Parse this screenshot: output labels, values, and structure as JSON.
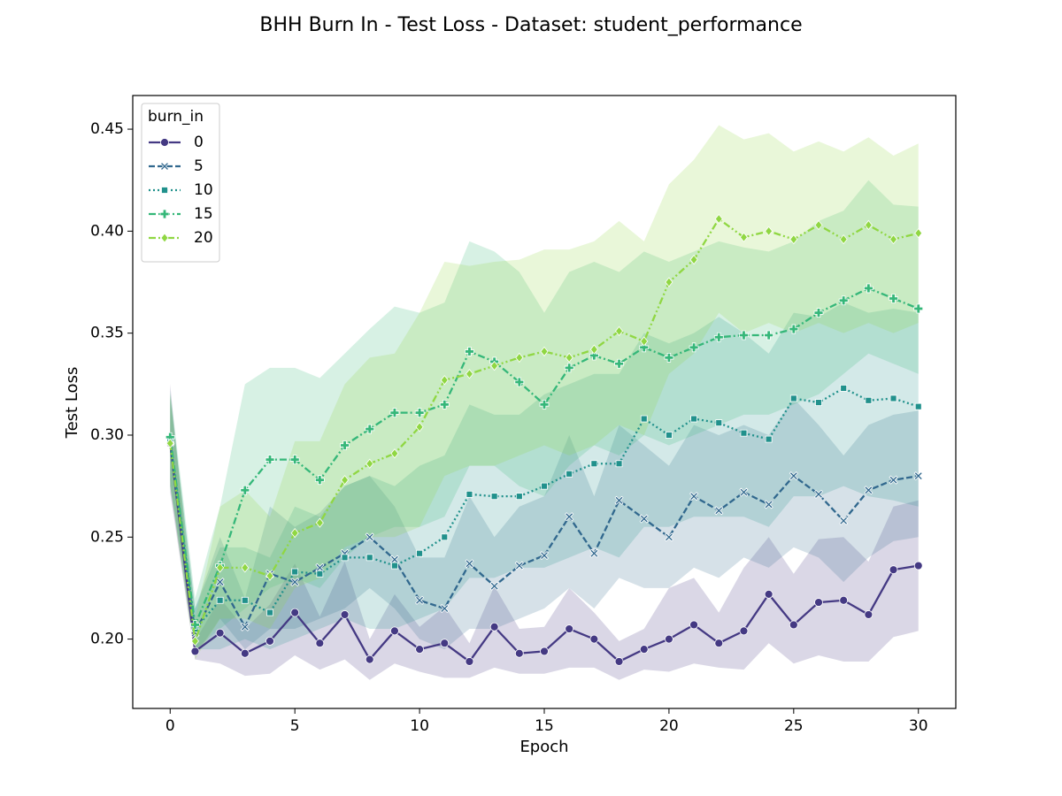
{
  "chart_data": {
    "type": "line",
    "title": "BHH Burn In - Test Loss - Dataset: student_performance",
    "xlabel": "Epoch",
    "ylabel": "Test Loss",
    "x": [
      0,
      1,
      2,
      3,
      4,
      5,
      6,
      7,
      8,
      9,
      10,
      11,
      12,
      13,
      14,
      15,
      16,
      17,
      18,
      19,
      20,
      21,
      22,
      23,
      24,
      25,
      26,
      27,
      28,
      29,
      30
    ],
    "xlim": [
      -1.5,
      31.5
    ],
    "xticks": [
      0,
      5,
      10,
      15,
      20,
      25,
      30
    ],
    "ylim": [
      0.166,
      0.4665
    ],
    "yticks": [
      {
        "value": 0.2,
        "label": "0.20"
      },
      0.25,
      {
        "value": 0.3,
        "label": "0.30"
      },
      0.35,
      {
        "value": 0.4,
        "label": "0.40"
      },
      0.45
    ],
    "legend_title": "burn_in",
    "legend_loc": "upper left",
    "series": [
      {
        "name": "0",
        "color": "#443983",
        "marker": "circle",
        "linestyle": "solid",
        "values": [
          0.296,
          0.194,
          0.203,
          0.193,
          0.199,
          0.213,
          0.198,
          0.212,
          0.19,
          0.204,
          0.195,
          0.198,
          0.189,
          0.206,
          0.193,
          0.194,
          0.205,
          0.2,
          0.189,
          0.195,
          0.2,
          0.207,
          0.198,
          0.204,
          0.222,
          0.207,
          0.218,
          0.219,
          0.212,
          0.234,
          0.236
        ],
        "lower": [
          0.272,
          0.19,
          0.188,
          0.182,
          0.183,
          0.192,
          0.185,
          0.19,
          0.18,
          0.188,
          0.184,
          0.181,
          0.181,
          0.186,
          0.183,
          0.183,
          0.186,
          0.186,
          0.18,
          0.185,
          0.184,
          0.188,
          0.186,
          0.185,
          0.198,
          0.188,
          0.192,
          0.189,
          0.189,
          0.201,
          0.204
        ],
        "upper": [
          0.325,
          0.199,
          0.22,
          0.205,
          0.217,
          0.237,
          0.211,
          0.238,
          0.2,
          0.222,
          0.206,
          0.216,
          0.198,
          0.226,
          0.205,
          0.206,
          0.225,
          0.213,
          0.199,
          0.205,
          0.225,
          0.23,
          0.213,
          0.235,
          0.25,
          0.232,
          0.249,
          0.25,
          0.238,
          0.265,
          0.268
        ]
      },
      {
        "name": "5",
        "color": "#31688e",
        "marker": "x",
        "linestyle": "dashed",
        "values": [
          0.297,
          0.203,
          0.228,
          0.206,
          0.232,
          0.228,
          0.235,
          0.242,
          0.25,
          0.239,
          0.219,
          0.215,
          0.237,
          0.226,
          0.236,
          0.241,
          0.26,
          0.242,
          0.268,
          0.259,
          0.25,
          0.27,
          0.263,
          0.272,
          0.266,
          0.28,
          0.271,
          0.258,
          0.273,
          0.278,
          0.28
        ],
        "lower": [
          0.275,
          0.192,
          0.21,
          0.195,
          0.205,
          0.205,
          0.21,
          0.215,
          0.225,
          0.215,
          0.2,
          0.195,
          0.205,
          0.205,
          0.21,
          0.215,
          0.225,
          0.215,
          0.23,
          0.225,
          0.225,
          0.235,
          0.23,
          0.24,
          0.235,
          0.245,
          0.24,
          0.228,
          0.24,
          0.248,
          0.25
        ],
        "upper": [
          0.318,
          0.215,
          0.25,
          0.22,
          0.265,
          0.255,
          0.262,
          0.275,
          0.28,
          0.265,
          0.24,
          0.24,
          0.27,
          0.25,
          0.265,
          0.27,
          0.3,
          0.27,
          0.305,
          0.295,
          0.285,
          0.305,
          0.3,
          0.305,
          0.3,
          0.318,
          0.305,
          0.29,
          0.305,
          0.31,
          0.312
        ]
      },
      {
        "name": "10",
        "color": "#21918c",
        "marker": "square",
        "linestyle": "dotted",
        "values": [
          0.298,
          0.205,
          0.219,
          0.219,
          0.213,
          0.233,
          0.232,
          0.24,
          0.24,
          0.236,
          0.242,
          0.25,
          0.271,
          0.27,
          0.27,
          0.275,
          0.281,
          0.286,
          0.286,
          0.308,
          0.3,
          0.308,
          0.306,
          0.301,
          0.298,
          0.318,
          0.316,
          0.323,
          0.317,
          0.318,
          0.314
        ],
        "lower": [
          0.275,
          0.195,
          0.195,
          0.2,
          0.195,
          0.2,
          0.205,
          0.21,
          0.205,
          0.205,
          0.21,
          0.215,
          0.23,
          0.23,
          0.235,
          0.235,
          0.24,
          0.245,
          0.24,
          0.255,
          0.255,
          0.26,
          0.26,
          0.26,
          0.255,
          0.27,
          0.27,
          0.275,
          0.27,
          0.268,
          0.265
        ],
        "upper": [
          0.32,
          0.215,
          0.245,
          0.245,
          0.24,
          0.265,
          0.26,
          0.275,
          0.28,
          0.275,
          0.285,
          0.29,
          0.315,
          0.31,
          0.31,
          0.32,
          0.325,
          0.33,
          0.33,
          0.35,
          0.345,
          0.35,
          0.358,
          0.35,
          0.34,
          0.36,
          0.358,
          0.365,
          0.36,
          0.362,
          0.36
        ]
      },
      {
        "name": "15",
        "color": "#35b779",
        "marker": "plus",
        "linestyle": "dashdot",
        "values": [
          0.299,
          0.207,
          0.236,
          0.273,
          0.288,
          0.288,
          0.278,
          0.295,
          0.303,
          0.311,
          0.311,
          0.315,
          0.341,
          0.336,
          0.326,
          0.315,
          0.333,
          0.339,
          0.335,
          0.343,
          0.338,
          0.343,
          0.348,
          0.349,
          0.349,
          0.352,
          0.36,
          0.366,
          0.372,
          0.367,
          0.362
        ],
        "lower": [
          0.278,
          0.195,
          0.205,
          0.215,
          0.225,
          0.23,
          0.225,
          0.24,
          0.25,
          0.255,
          0.255,
          0.26,
          0.285,
          0.285,
          0.275,
          0.27,
          0.285,
          0.295,
          0.29,
          0.3,
          0.295,
          0.3,
          0.305,
          0.31,
          0.31,
          0.315,
          0.32,
          0.33,
          0.34,
          0.335,
          0.33
        ],
        "upper": [
          0.322,
          0.22,
          0.265,
          0.325,
          0.333,
          0.333,
          0.328,
          0.34,
          0.352,
          0.363,
          0.36,
          0.365,
          0.395,
          0.39,
          0.38,
          0.36,
          0.38,
          0.385,
          0.38,
          0.39,
          0.385,
          0.39,
          0.395,
          0.392,
          0.39,
          0.395,
          0.405,
          0.41,
          0.425,
          0.413,
          0.412
        ]
      },
      {
        "name": "20",
        "color": "#90d743",
        "marker": "diamond",
        "linestyle": "dashdotdot",
        "values": [
          0.296,
          0.199,
          0.235,
          0.235,
          0.231,
          0.252,
          0.257,
          0.278,
          0.286,
          0.291,
          0.304,
          0.327,
          0.33,
          0.334,
          0.338,
          0.341,
          0.338,
          0.342,
          0.351,
          0.346,
          0.375,
          0.386,
          0.406,
          0.397,
          0.4,
          0.396,
          0.403,
          0.396,
          0.403,
          0.396,
          0.399
        ],
        "lower": [
          0.275,
          0.19,
          0.21,
          0.21,
          0.205,
          0.225,
          0.23,
          0.245,
          0.25,
          0.25,
          0.255,
          0.28,
          0.285,
          0.285,
          0.29,
          0.295,
          0.29,
          0.295,
          0.305,
          0.3,
          0.33,
          0.34,
          0.36,
          0.35,
          0.355,
          0.35,
          0.355,
          0.35,
          0.355,
          0.35,
          0.355
        ],
        "upper": [
          0.32,
          0.21,
          0.265,
          0.273,
          0.26,
          0.297,
          0.297,
          0.325,
          0.338,
          0.34,
          0.36,
          0.385,
          0.383,
          0.385,
          0.386,
          0.391,
          0.391,
          0.395,
          0.405,
          0.395,
          0.423,
          0.435,
          0.452,
          0.445,
          0.448,
          0.439,
          0.444,
          0.439,
          0.446,
          0.437,
          0.443
        ]
      }
    ]
  }
}
